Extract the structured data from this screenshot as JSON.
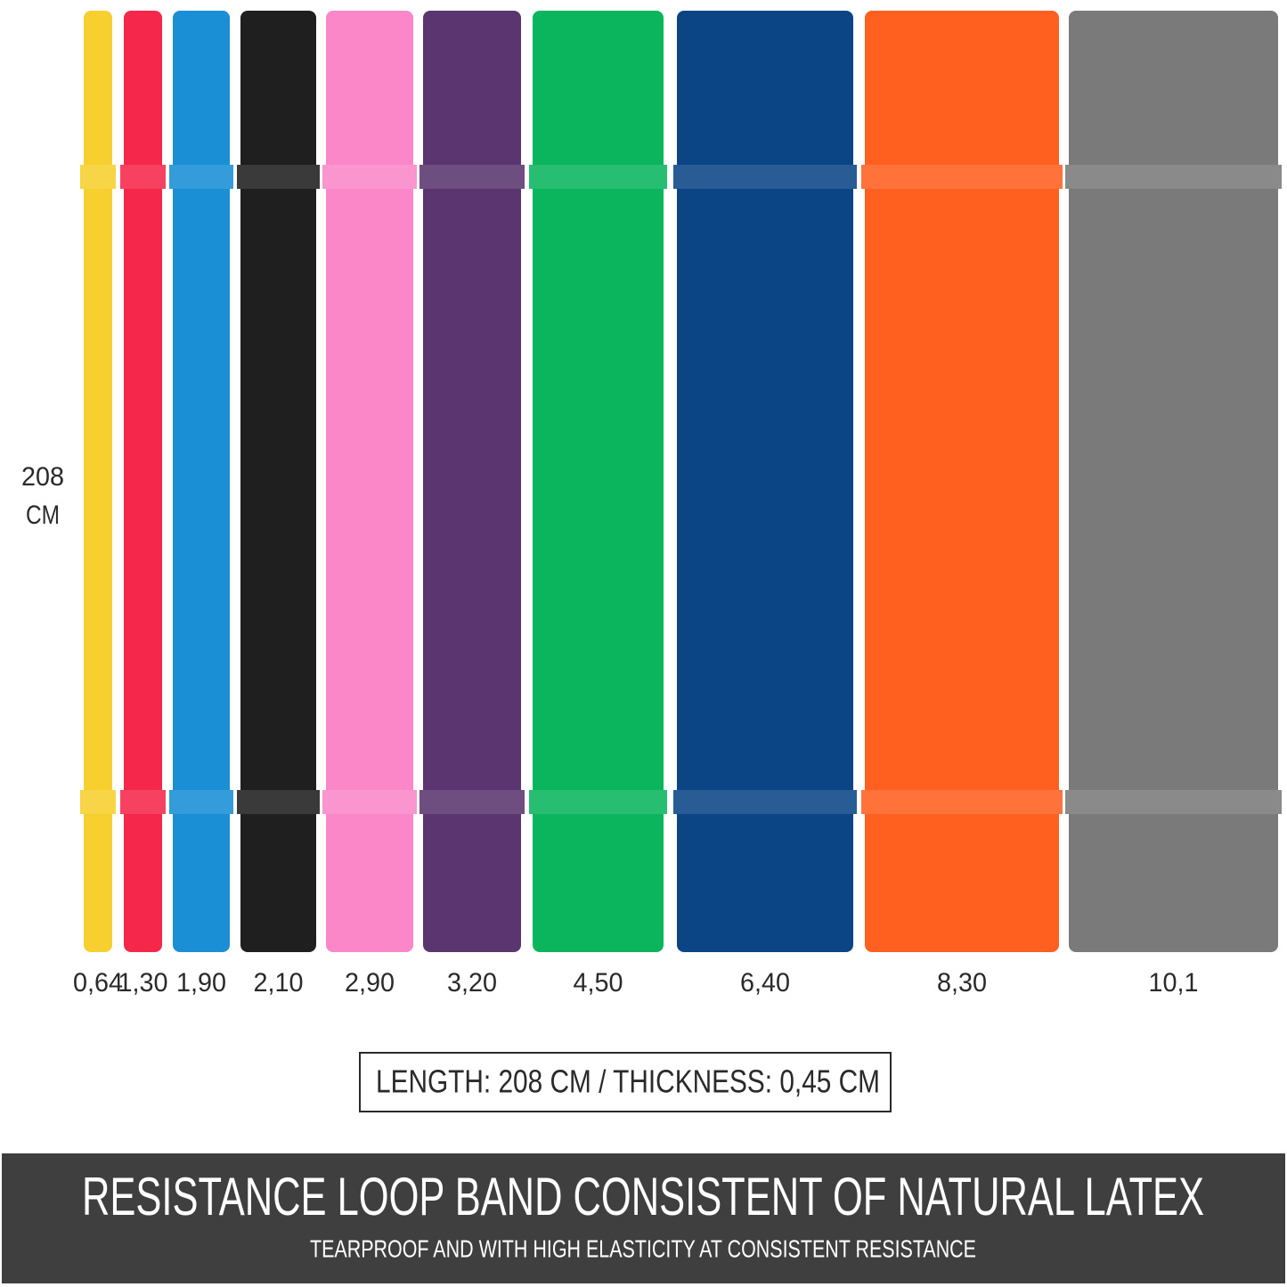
{
  "side_label": [
    "208",
    "CM"
  ],
  "bands": [
    {
      "label": "0,64",
      "color": "#f7cf2e"
    },
    {
      "label": "1,30",
      "color": "#f5284b"
    },
    {
      "label": "1,90",
      "color": "#1a8fd6"
    },
    {
      "label": "2,10",
      "color": "#1f1f1f"
    },
    {
      "label": "2,90",
      "color": "#fb87c9"
    },
    {
      "label": "3,20",
      "color": "#5a3570"
    },
    {
      "label": "4,50",
      "color": "#0ab55e"
    },
    {
      "label": "6,40",
      "color": "#0c4586"
    },
    {
      "label": "8,30",
      "color": "#ff6020"
    },
    {
      "label": "10,1",
      "color": "#7a7a7b"
    }
  ],
  "spec": "LENGTH: 208 CM / THICKNESS: 0,45 CM",
  "footer": {
    "title": "RESISTANCE LOOP BAND CONSISTENT OF NATURAL LATEX",
    "subtitle": "TEARPROOF AND WITH HIGH ELASTICITY AT CONSISTENT RESISTANCE"
  }
}
